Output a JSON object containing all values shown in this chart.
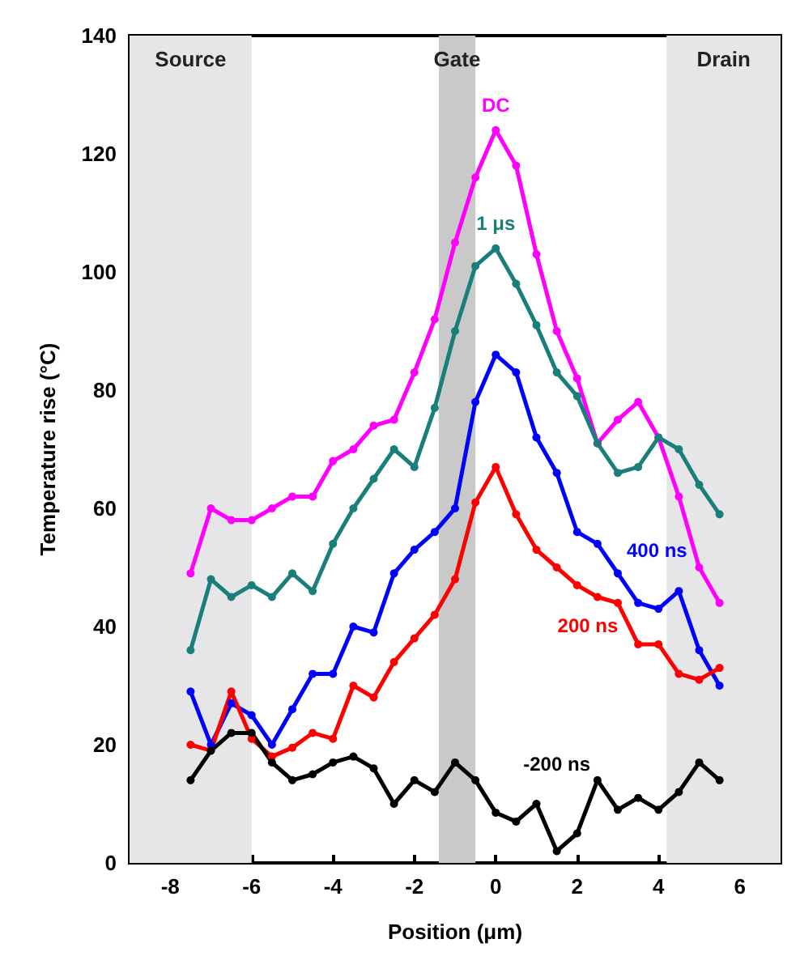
{
  "chart_data": {
    "type": "line",
    "xlabel": "Position (μm)",
    "ylabel": "Temperature rise (°C)",
    "x": [
      -7.5,
      -7,
      -6.5,
      -6,
      -5.5,
      -5,
      -4.5,
      -4,
      -3.5,
      -3,
      -2.5,
      -2,
      -1.5,
      -1,
      -0.5,
      0,
      0.5,
      1,
      1.5,
      2,
      2.5,
      3,
      3.5,
      4,
      4.5,
      5,
      5.5
    ],
    "xlim": [
      -9,
      7
    ],
    "xticks": [
      -8,
      -6,
      -4,
      -2,
      0,
      2,
      4,
      6
    ],
    "ylim": [
      0,
      140
    ],
    "yticks": [
      0,
      20,
      40,
      60,
      80,
      100,
      120,
      140
    ],
    "grid": false,
    "legend": false,
    "marker": "circle",
    "line_style": "solid",
    "series": [
      {
        "name": "DC",
        "color": "#ff00ff",
        "values": [
          49,
          60,
          58,
          58,
          60,
          62,
          62,
          68,
          70,
          74,
          75,
          83,
          92,
          105,
          116,
          124,
          118,
          103,
          90,
          82,
          71,
          75,
          78,
          72,
          62,
          50,
          44
        ]
      },
      {
        "name": "1 μs",
        "color": "#1a7f7a",
        "values": [
          36,
          48,
          45,
          47,
          45,
          49,
          46,
          54,
          60,
          65,
          70,
          67,
          77,
          90,
          101,
          104,
          98,
          91,
          83,
          79,
          71,
          66,
          67,
          72,
          70,
          64,
          59
        ]
      },
      {
        "name": "400 ns",
        "color": "#0000ff",
        "values": [
          29,
          20,
          27,
          25,
          20,
          26,
          32,
          32,
          40,
          39,
          49,
          53,
          56,
          60,
          78,
          86,
          83,
          72,
          66,
          56,
          54,
          49,
          44,
          43,
          46,
          36,
          30
        ]
      },
      {
        "name": "200 ns",
        "color": "#ff0000",
        "values": [
          20,
          19,
          29,
          21,
          18,
          19.5,
          22,
          21,
          30,
          28,
          34,
          38,
          42,
          48,
          61,
          67,
          59,
          53,
          50,
          47,
          45,
          44,
          37,
          37,
          32,
          31,
          33
        ]
      },
      {
        "name": "-200 ns",
        "color": "#000000",
        "values": [
          14,
          19,
          22,
          22,
          17,
          14,
          15,
          17,
          18,
          16,
          10,
          14,
          12,
          17,
          14,
          8.5,
          7,
          10,
          2,
          5,
          14,
          9,
          11,
          9,
          12,
          17,
          14
        ]
      }
    ],
    "bands": [
      {
        "axis": "x",
        "from": -9,
        "to": -6,
        "label": "Source",
        "color": "#e6e6e9"
      },
      {
        "axis": "x",
        "from": -1.4,
        "to": -0.5,
        "label": "Gate",
        "color": "#c9c9c9"
      },
      {
        "axis": "x",
        "from": 4.2,
        "to": 7,
        "label": "Drain",
        "color": "#e6e6e9"
      }
    ]
  }
}
